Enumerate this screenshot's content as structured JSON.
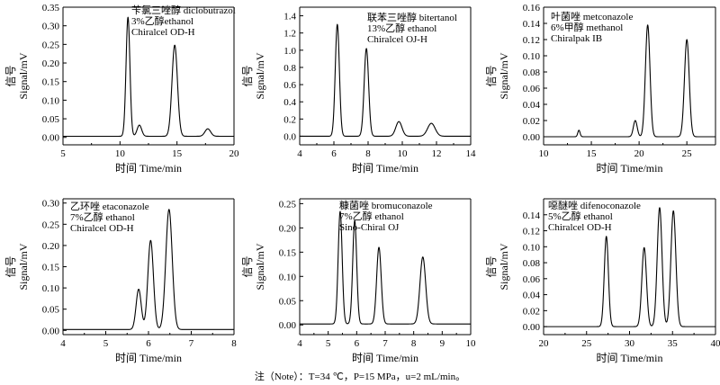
{
  "footnote": "注（Note）：T=34 ℃，P=15 MPa，u=2 mL/min。",
  "chart_data": [
    {
      "type": "line",
      "compound": "苄氯三唑醇 diclobutrazol",
      "annotation": [
        "苄氯三唑醇  diclobutrazol",
        "3%乙醇ethanol",
        "Chiralcel OD-H"
      ],
      "xlabel": "时间 Time/min",
      "ylabel_cn": "信号",
      "ylabel_en": "Signal/mV",
      "xlim": [
        5,
        20
      ],
      "ylim": [
        -0.02,
        0.35
      ],
      "xticks": [
        5,
        10,
        15,
        20
      ],
      "yticks": [
        0.0,
        0.05,
        0.1,
        0.15,
        0.2,
        0.25,
        0.3,
        0.35
      ],
      "ytick_labels": [
        "0.00",
        "0.05",
        "0.10",
        "0.15",
        "0.20",
        "0.25",
        "0.30",
        "0.35"
      ],
      "baseline": 0.003,
      "peaks": [
        {
          "rt": 10.7,
          "height": 0.32,
          "width": 0.17
        },
        {
          "rt": 11.7,
          "height": 0.03,
          "width": 0.2
        },
        {
          "rt": 14.8,
          "height": 0.245,
          "width": 0.24
        },
        {
          "rt": 17.7,
          "height": 0.02,
          "width": 0.25
        }
      ]
    },
    {
      "type": "line",
      "compound": "联苯三唑醇 bitertanol",
      "annotation": [
        "联苯三唑醇  bitertanol",
        "13%乙醇  ethanol",
        "Chiralcel OJ-H"
      ],
      "xlabel": "时间 Time/min",
      "ylabel_cn": "信号",
      "ylabel_en": "Signal/mV",
      "xlim": [
        4,
        14
      ],
      "ylim": [
        -0.1,
        1.5
      ],
      "xticks": [
        4,
        6,
        8,
        10,
        12,
        14
      ],
      "yticks": [
        0.0,
        0.2,
        0.4,
        0.6,
        0.8,
        1.0,
        1.2,
        1.4
      ],
      "ytick_labels": [
        "0.0",
        "0.2",
        "0.4",
        "0.6",
        "0.8",
        "1.0",
        "1.2",
        "1.4"
      ],
      "baseline": 0.0,
      "peaks": [
        {
          "rt": 6.2,
          "height": 1.3,
          "width": 0.12
        },
        {
          "rt": 7.9,
          "height": 1.02,
          "width": 0.13
        },
        {
          "rt": 9.8,
          "height": 0.17,
          "width": 0.18
        },
        {
          "rt": 11.7,
          "height": 0.15,
          "width": 0.22
        }
      ]
    },
    {
      "type": "line",
      "compound": "叶菌唑 metconazole",
      "annotation": [
        "叶菌唑  metconazole",
        "6%甲醇  methanol",
        "Chiralpak IB"
      ],
      "xlabel": "时间 Time/min",
      "ylabel_cn": "信号",
      "ylabel_en": "Signal/mV",
      "xlim": [
        10,
        28
      ],
      "ylim": [
        -0.01,
        0.16
      ],
      "xticks": [
        10,
        15,
        20,
        25
      ],
      "yticks": [
        0.0,
        0.02,
        0.04,
        0.06,
        0.08,
        0.1,
        0.12,
        0.14,
        0.16
      ],
      "ytick_labels": [
        "0.00",
        "0.02",
        "0.04",
        "0.06",
        "0.08",
        "0.10",
        "0.12",
        "0.14",
        "0.16"
      ],
      "baseline": 0.0,
      "peaks": [
        {
          "rt": 13.7,
          "height": 0.008,
          "width": 0.12
        },
        {
          "rt": 19.6,
          "height": 0.02,
          "width": 0.2
        },
        {
          "rt": 20.9,
          "height": 0.138,
          "width": 0.24
        },
        {
          "rt": 25.0,
          "height": 0.12,
          "width": 0.25
        }
      ]
    },
    {
      "type": "line",
      "compound": "乙环唑 etaconazole",
      "annotation": [
        "乙环唑 etaconazole",
        "7%乙醇  ethanol",
        "Chiralcel OD-H"
      ],
      "xlabel": "时间 Time/min",
      "ylabel_cn": "信号",
      "ylabel_en": "Signal/mV",
      "xlim": [
        4,
        8
      ],
      "ylim": [
        -0.01,
        0.31
      ],
      "xticks": [
        4,
        5,
        6,
        7,
        8
      ],
      "yticks": [
        0.0,
        0.05,
        0.1,
        0.15,
        0.2,
        0.25,
        0.3
      ],
      "ytick_labels": [
        "0.00",
        "0.05",
        "0.10",
        "0.15",
        "0.20",
        "0.25",
        "0.30"
      ],
      "baseline": 0.002,
      "peaks": [
        {
          "rt": 5.77,
          "height": 0.095,
          "width": 0.06
        },
        {
          "rt": 6.05,
          "height": 0.21,
          "width": 0.065
        },
        {
          "rt": 6.48,
          "height": 0.283,
          "width": 0.075
        }
      ]
    },
    {
      "type": "line",
      "compound": "糠菌唑 bromuconazole",
      "annotation": [
        "糠菌唑 bromuconazole",
        "7%乙醇  ethanol",
        "Sino-Chiral OJ"
      ],
      "xlabel": "时间 Time/min",
      "ylabel_cn": "信号",
      "ylabel_en": "Signal/mV",
      "xlim": [
        4,
        10
      ],
      "ylim": [
        -0.02,
        0.26
      ],
      "xticks": [
        4,
        5,
        6,
        7,
        8,
        9,
        10
      ],
      "yticks": [
        0.0,
        0.05,
        0.1,
        0.15,
        0.2,
        0.25
      ],
      "ytick_labels": [
        "0.00",
        "0.05",
        "0.10",
        "0.15",
        "0.20",
        "0.25"
      ],
      "baseline": 0.002,
      "peaks": [
        {
          "rt": 5.42,
          "height": 0.232,
          "width": 0.07
        },
        {
          "rt": 5.93,
          "height": 0.213,
          "width": 0.07
        },
        {
          "rt": 6.78,
          "height": 0.158,
          "width": 0.08
        },
        {
          "rt": 8.32,
          "height": 0.138,
          "width": 0.1
        }
      ]
    },
    {
      "type": "line",
      "compound": "噁醚唑 difenoconazole",
      "annotation": [
        "噁醚唑  difenoconazole",
        "5%乙醇  ethanol",
        "Chiralcel OD-H"
      ],
      "xlabel": "时间 Time/min",
      "ylabel_cn": "信号",
      "ylabel_en": "Signal/mV",
      "xlim": [
        20,
        40
      ],
      "ylim": [
        -0.01,
        0.16
      ],
      "xticks": [
        20,
        25,
        30,
        35,
        40
      ],
      "yticks": [
        0.0,
        0.02,
        0.04,
        0.06,
        0.08,
        0.1,
        0.12,
        0.14
      ],
      "ytick_labels": [
        "0.00",
        "0.02",
        "0.04",
        "0.06",
        "0.08",
        "0.10",
        "0.12",
        "0.14"
      ],
      "baseline": 0.0,
      "peaks": [
        {
          "rt": 27.3,
          "height": 0.113,
          "width": 0.24
        },
        {
          "rt": 31.7,
          "height": 0.099,
          "width": 0.27
        },
        {
          "rt": 33.5,
          "height": 0.149,
          "width": 0.28
        },
        {
          "rt": 35.1,
          "height": 0.145,
          "width": 0.29
        }
      ]
    }
  ]
}
